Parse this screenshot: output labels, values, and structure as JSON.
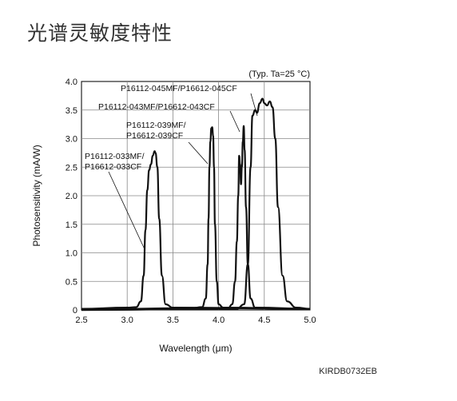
{
  "page": {
    "title": "光谱灵敏度特性",
    "doc_code": "KIRDB0732EB"
  },
  "chart_data": {
    "type": "line",
    "title": "",
    "condition": "(Typ. Ta=25 °C)",
    "xlabel": "Wavelength (μm)",
    "ylabel": "Photosensitivity (mA/W)",
    "xlim": [
      2.5,
      5.0
    ],
    "ylim": [
      0,
      4.0
    ],
    "xticks": [
      "2.5",
      "3.0",
      "3.5",
      "4.0",
      "4.5",
      "5.0"
    ],
    "yticks": [
      "0",
      "0.5",
      "1.0",
      "1.5",
      "2.0",
      "2.5",
      "3.0",
      "3.5",
      "4.0"
    ],
    "grid": true,
    "series": [
      {
        "name": "P16112-033MF/\nP16612-033CF",
        "points": [
          [
            2.5,
            0.02
          ],
          [
            3.0,
            0.04
          ],
          [
            3.1,
            0.05
          ],
          [
            3.15,
            0.15
          ],
          [
            3.18,
            0.6
          ],
          [
            3.2,
            1.4
          ],
          [
            3.22,
            2.1
          ],
          [
            3.24,
            2.45
          ],
          [
            3.26,
            2.55
          ],
          [
            3.28,
            2.7
          ],
          [
            3.3,
            2.78
          ],
          [
            3.31,
            2.75
          ],
          [
            3.33,
            2.5
          ],
          [
            3.35,
            1.6
          ],
          [
            3.38,
            0.6
          ],
          [
            3.42,
            0.1
          ],
          [
            3.5,
            0.04
          ],
          [
            5.0,
            0.02
          ]
        ]
      },
      {
        "name": "P16112-039MF/\nP16612-039CF",
        "points": [
          [
            2.5,
            0.01
          ],
          [
            3.7,
            0.03
          ],
          [
            3.82,
            0.05
          ],
          [
            3.86,
            0.2
          ],
          [
            3.88,
            0.8
          ],
          [
            3.89,
            1.6
          ],
          [
            3.9,
            2.5
          ],
          [
            3.91,
            2.95
          ],
          [
            3.92,
            3.18
          ],
          [
            3.93,
            3.2
          ],
          [
            3.94,
            3.05
          ],
          [
            3.95,
            2.5
          ],
          [
            3.96,
            1.5
          ],
          [
            3.98,
            0.5
          ],
          [
            4.0,
            0.1
          ],
          [
            4.05,
            0.04
          ],
          [
            5.0,
            0.02
          ]
        ]
      },
      {
        "name": "P16112-043MF/P16612-043CF",
        "points": [
          [
            2.5,
            0.0
          ],
          [
            4.1,
            0.02
          ],
          [
            4.15,
            0.1
          ],
          [
            4.18,
            0.5
          ],
          [
            4.2,
            1.2
          ],
          [
            4.215,
            2.0
          ],
          [
            4.225,
            2.7
          ],
          [
            4.235,
            2.55
          ],
          [
            4.245,
            2.2
          ],
          [
            4.255,
            2.5
          ],
          [
            4.265,
            2.95
          ],
          [
            4.275,
            3.22
          ],
          [
            4.285,
            2.8
          ],
          [
            4.3,
            1.8
          ],
          [
            4.32,
            0.8
          ],
          [
            4.35,
            0.2
          ],
          [
            4.4,
            0.04
          ],
          [
            5.0,
            0.02
          ]
        ]
      },
      {
        "name": "P16112-045MF/P16612-045CF",
        "points": [
          [
            2.5,
            0.0
          ],
          [
            4.2,
            0.02
          ],
          [
            4.28,
            0.1
          ],
          [
            4.32,
            0.8
          ],
          [
            4.35,
            2.5
          ],
          [
            4.37,
            3.4
          ],
          [
            4.4,
            3.5
          ],
          [
            4.42,
            3.45
          ],
          [
            4.45,
            3.62
          ],
          [
            4.48,
            3.7
          ],
          [
            4.5,
            3.62
          ],
          [
            4.53,
            3.58
          ],
          [
            4.56,
            3.65
          ],
          [
            4.59,
            3.55
          ],
          [
            4.62,
            3.0
          ],
          [
            4.65,
            1.8
          ],
          [
            4.7,
            0.6
          ],
          [
            4.75,
            0.15
          ],
          [
            4.85,
            0.04
          ],
          [
            5.0,
            0.02
          ]
        ]
      }
    ]
  }
}
